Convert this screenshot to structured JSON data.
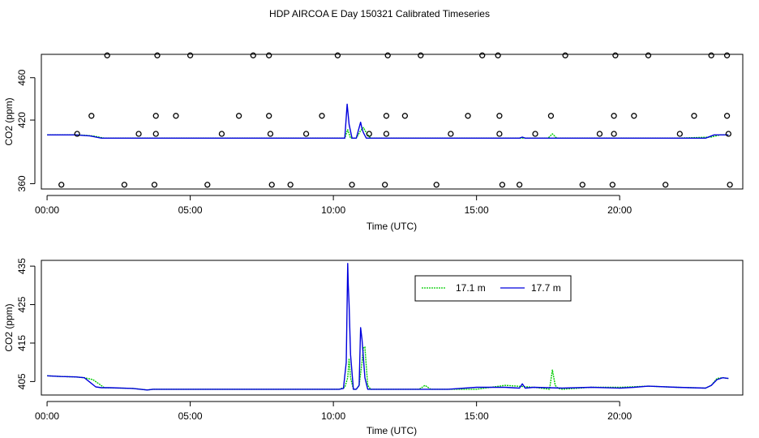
{
  "title": "HDP AIRCOA E  Day 150321  Calibrated Timeseries",
  "colors": {
    "s17_1": "#00cc00",
    "s17_7": "#0000dd",
    "axis": "#000000"
  },
  "chart_data": [
    {
      "type": "line",
      "xlabel": "Time (UTC)",
      "ylabel": "CO2 (ppm)",
      "xlim": [
        -0.2,
        24.3
      ],
      "ylim": [
        355,
        482
      ],
      "x_ticks": [
        0,
        5,
        10,
        15,
        20
      ],
      "x_tick_labels": [
        "00:00",
        "05:00",
        "10:00",
        "15:00",
        "20:00"
      ],
      "y_ticks": [
        360,
        420,
        460
      ],
      "y_tick_labels": [
        "360",
        "420",
        "460"
      ],
      "legend": null,
      "series": [
        {
          "key": "s17_1",
          "color": "#00cc00",
          "style": "dotted",
          "x": [
            0,
            1.1,
            1.6,
            2.0,
            3.5,
            5,
            8,
            10.2,
            10.4,
            10.5,
            10.6,
            10.8,
            10.95,
            11.05,
            11.15,
            11.3,
            13,
            17.5,
            17.65,
            17.8,
            18,
            20,
            22,
            23.2,
            23.5,
            23.8
          ],
          "y": [
            406,
            406,
            405,
            403,
            403,
            403,
            403,
            403,
            403,
            411,
            403,
            403,
            410,
            413,
            408,
            403,
            403,
            403,
            407,
            403,
            403,
            403,
            403,
            404,
            406,
            406
          ]
        },
        {
          "key": "s17_7",
          "color": "#0000dd",
          "style": "solid",
          "x": [
            0,
            1.0,
            1.5,
            1.9,
            2.2,
            3.5,
            5,
            8,
            10.2,
            10.4,
            10.48,
            10.55,
            10.65,
            10.8,
            10.95,
            11.0,
            11.05,
            11.15,
            11.3,
            13,
            16.5,
            16.6,
            16.7,
            20,
            22,
            23.0,
            23.3,
            23.6,
            23.8
          ],
          "y": [
            406,
            406,
            405,
            403,
            403,
            403,
            403,
            403,
            403,
            403,
            435,
            416,
            403,
            403,
            418,
            412,
            408,
            403,
            403,
            403,
            403,
            404,
            403,
            403,
            403,
            403,
            406,
            406,
            406
          ]
        }
      ],
      "calibration_points": [
        {
          "x": [
            2.1,
            3.85,
            5.0,
            7.2,
            7.75,
            10.15,
            11.9,
            13.05,
            15.2,
            15.75,
            18.1,
            19.85,
            21.0,
            23.2,
            23.75
          ],
          "y": 481
        },
        {
          "x": [
            1.55,
            3.8,
            4.5,
            6.7,
            7.75,
            9.6,
            11.85,
            12.5,
            14.7,
            15.8,
            17.6,
            19.8,
            20.5,
            22.6,
            23.75
          ],
          "y": 424
        },
        {
          "x": [
            1.05,
            3.2,
            3.8,
            6.1,
            7.8,
            9.05,
            11.25,
            11.85,
            14.1,
            15.8,
            17.05,
            19.3,
            19.8,
            22.1,
            23.8
          ],
          "y": 407
        },
        {
          "x": [
            0.5,
            2.7,
            3.75,
            5.6,
            7.85,
            8.5,
            10.65,
            11.8,
            13.6,
            15.9,
            16.5,
            18.7,
            19.75,
            21.6,
            23.85
          ],
          "y": 359
        }
      ]
    },
    {
      "type": "line",
      "xlabel": "Time (UTC)",
      "ylabel": "CO2 (ppm)",
      "xlim": [
        -0.2,
        24.3
      ],
      "ylim": [
        401.5,
        436.5
      ],
      "x_ticks": [
        0,
        5,
        10,
        15,
        20
      ],
      "x_tick_labels": [
        "00:00",
        "05:00",
        "10:00",
        "15:00",
        "20:00"
      ],
      "y_ticks": [
        405,
        415,
        425,
        435
      ],
      "y_tick_labels": [
        "405",
        "415",
        "425",
        "435"
      ],
      "legend": {
        "position": "top-right",
        "entries": [
          "17.1 m",
          "17.7 m"
        ]
      },
      "series": [
        {
          "key": "s17_1",
          "name": "17.1 m",
          "color": "#00cc00",
          "style": "dotted",
          "x": [
            0,
            0.5,
            1.0,
            1.3,
            1.6,
            2.0,
            3.0,
            3.5,
            3.7,
            5,
            7,
            9,
            10.2,
            10.4,
            10.5,
            10.55,
            10.6,
            10.7,
            10.8,
            10.9,
            11.0,
            11.05,
            11.1,
            11.15,
            11.2,
            11.3,
            11.5,
            12,
            13,
            13.2,
            13.4,
            14,
            15,
            16,
            17,
            17.55,
            17.65,
            17.75,
            17.85,
            18,
            19,
            20,
            21,
            22,
            23,
            23.2,
            23.4,
            23.6,
            23.8
          ],
          "y": [
            406.5,
            406.3,
            406.2,
            406,
            405.5,
            403.4,
            403.2,
            402.8,
            403,
            403,
            403,
            403,
            403,
            403.5,
            406,
            411,
            406,
            403,
            403,
            404,
            410,
            413.8,
            414,
            409,
            404,
            403,
            403,
            403,
            403,
            404,
            403,
            403,
            403,
            404,
            403.5,
            403,
            408,
            404,
            403.2,
            403,
            403.5,
            403.5,
            403.8,
            403.5,
            403.3,
            404,
            405.8,
            406,
            405.8
          ]
        },
        {
          "key": "s17_7",
          "name": "17.7 m",
          "color": "#0000dd",
          "style": "solid",
          "x": [
            0,
            0.5,
            1.0,
            1.3,
            1.5,
            1.7,
            1.9,
            2.2,
            3.0,
            3.5,
            3.7,
            5,
            7,
            9,
            10.2,
            10.35,
            10.45,
            10.5,
            10.52,
            10.55,
            10.6,
            10.7,
            10.8,
            10.9,
            10.95,
            11.0,
            11.05,
            11.1,
            11.2,
            11.3,
            11.5,
            12,
            13,
            14,
            15,
            16,
            16.5,
            16.6,
            16.7,
            17,
            18,
            19,
            20,
            20.5,
            21,
            22,
            23,
            23.2,
            23.4,
            23.6,
            23.8
          ],
          "y": [
            406.5,
            406.3,
            406.2,
            406,
            404.8,
            403.6,
            403.4,
            403.4,
            403.2,
            402.8,
            403,
            403,
            403,
            403,
            403,
            403.2,
            410,
            435.7,
            430,
            425,
            412,
            403,
            403,
            404,
            419,
            416,
            411,
            406,
            403,
            403,
            403,
            403,
            403,
            403,
            403.5,
            403.5,
            403.3,
            404.4,
            403.3,
            403.5,
            403.3,
            403.5,
            403.3,
            403.5,
            403.8,
            403.5,
            403.3,
            404,
            405.5,
            406,
            405.8
          ]
        }
      ]
    }
  ]
}
